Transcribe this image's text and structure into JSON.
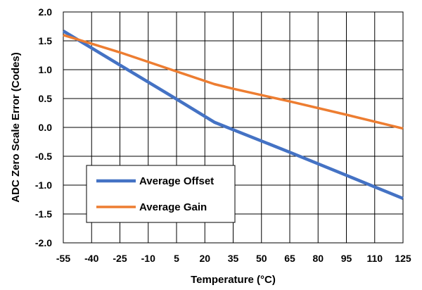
{
  "chart_data": {
    "type": "line",
    "title": "",
    "xlabel": "Temperature (°C)",
    "ylabel": "ADC Zero Scale Error (Codes)",
    "xlim": [
      -55,
      125
    ],
    "ylim": [
      -2.0,
      2.0
    ],
    "x_ticks": [
      "-55",
      "-40",
      "-25",
      "-10",
      "5",
      "20",
      "35",
      "50",
      "65",
      "80",
      "95",
      "110",
      "125"
    ],
    "y_ticks": [
      "2.0",
      "1.5",
      "1.0",
      "0.5",
      "0.0",
      "-0.5",
      "-1.0",
      "-1.5",
      "-2.0"
    ],
    "grid": true,
    "legend_position": "lower-left",
    "series": [
      {
        "name": "Average Offset",
        "color": "#4472C4",
        "x": [
          -55,
          -25,
          5,
          25,
          35,
          65,
          95,
          125
        ],
        "y": [
          1.67,
          1.08,
          0.49,
          0.09,
          -0.04,
          -0.43,
          -0.83,
          -1.23
        ]
      },
      {
        "name": "Average Gain",
        "color": "#ED7D31",
        "x": [
          -55,
          -25,
          5,
          25,
          35,
          65,
          95,
          125
        ],
        "y": [
          1.6,
          1.3,
          0.97,
          0.75,
          0.67,
          0.45,
          0.22,
          -0.02
        ]
      }
    ]
  }
}
